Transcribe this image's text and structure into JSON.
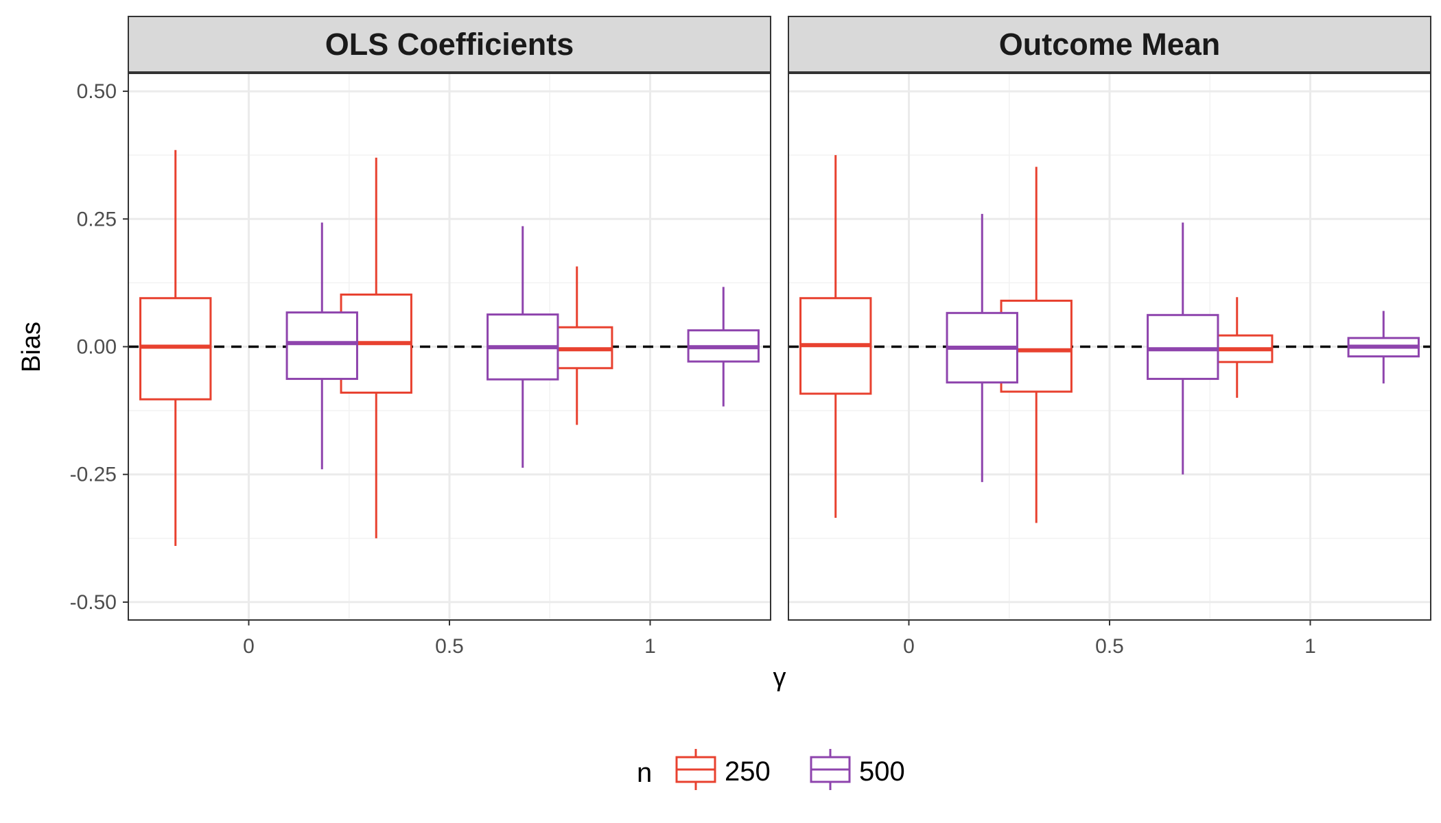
{
  "chart_data": {
    "type": "boxplot",
    "xlabel": "γ",
    "ylabel": "Bias",
    "ylim": [
      -0.535,
      0.535
    ],
    "y_ticks": [
      "-0.50",
      "-0.25",
      "0.00",
      "0.25",
      "0.50"
    ],
    "y_tick_values": [
      -0.5,
      -0.25,
      0,
      0.25,
      0.5
    ],
    "categories": [
      "0",
      "0.5",
      "1"
    ],
    "category_values": [
      0,
      0.5,
      1
    ],
    "xlim": [
      -0.3,
      1.3
    ],
    "reference_line": 0,
    "grid": true,
    "legend": {
      "title": "n",
      "position": "bottom",
      "entries": [
        "250",
        "500"
      ]
    },
    "colors": {
      "250": "#e8412f",
      "500": "#8e44ad"
    },
    "panels": [
      {
        "title": "OLS Coefficients",
        "series": [
          {
            "name": "250",
            "boxes": [
              {
                "x": "0",
                "whisker_low": -0.39,
                "q1": -0.103,
                "median": 0.0,
                "q3": 0.095,
                "whisker_high": 0.385
              },
              {
                "x": "0.5",
                "whisker_low": -0.375,
                "q1": -0.09,
                "median": 0.007,
                "q3": 0.102,
                "whisker_high": 0.37
              },
              {
                "x": "1",
                "whisker_low": -0.153,
                "q1": -0.042,
                "median": -0.005,
                "q3": 0.038,
                "whisker_high": 0.157
              }
            ]
          },
          {
            "name": "500",
            "boxes": [
              {
                "x": "0",
                "whisker_low": -0.24,
                "q1": -0.063,
                "median": 0.007,
                "q3": 0.067,
                "whisker_high": 0.243
              },
              {
                "x": "0.5",
                "whisker_low": -0.237,
                "q1": -0.064,
                "median": -0.001,
                "q3": 0.063,
                "whisker_high": 0.236
              },
              {
                "x": "1",
                "whisker_low": -0.117,
                "q1": -0.029,
                "median": -0.001,
                "q3": 0.032,
                "whisker_high": 0.117
              }
            ]
          }
        ]
      },
      {
        "title": "Outcome Mean",
        "series": [
          {
            "name": "250",
            "boxes": [
              {
                "x": "0",
                "whisker_low": -0.335,
                "q1": -0.092,
                "median": 0.003,
                "q3": 0.095,
                "whisker_high": 0.375
              },
              {
                "x": "0.5",
                "whisker_low": -0.345,
                "q1": -0.088,
                "median": -0.007,
                "q3": 0.09,
                "whisker_high": 0.352
              },
              {
                "x": "1",
                "whisker_low": -0.1,
                "q1": -0.03,
                "median": -0.005,
                "q3": 0.022,
                "whisker_high": 0.097
              }
            ]
          },
          {
            "name": "500",
            "boxes": [
              {
                "x": "0",
                "whisker_low": -0.265,
                "q1": -0.07,
                "median": -0.002,
                "q3": 0.066,
                "whisker_high": 0.26
              },
              {
                "x": "0.5",
                "whisker_low": -0.25,
                "q1": -0.063,
                "median": -0.005,
                "q3": 0.062,
                "whisker_high": 0.243
              },
              {
                "x": "1",
                "whisker_low": -0.072,
                "q1": -0.019,
                "median": 0.0,
                "q3": 0.017,
                "whisker_high": 0.07
              }
            ]
          }
        ]
      }
    ]
  }
}
